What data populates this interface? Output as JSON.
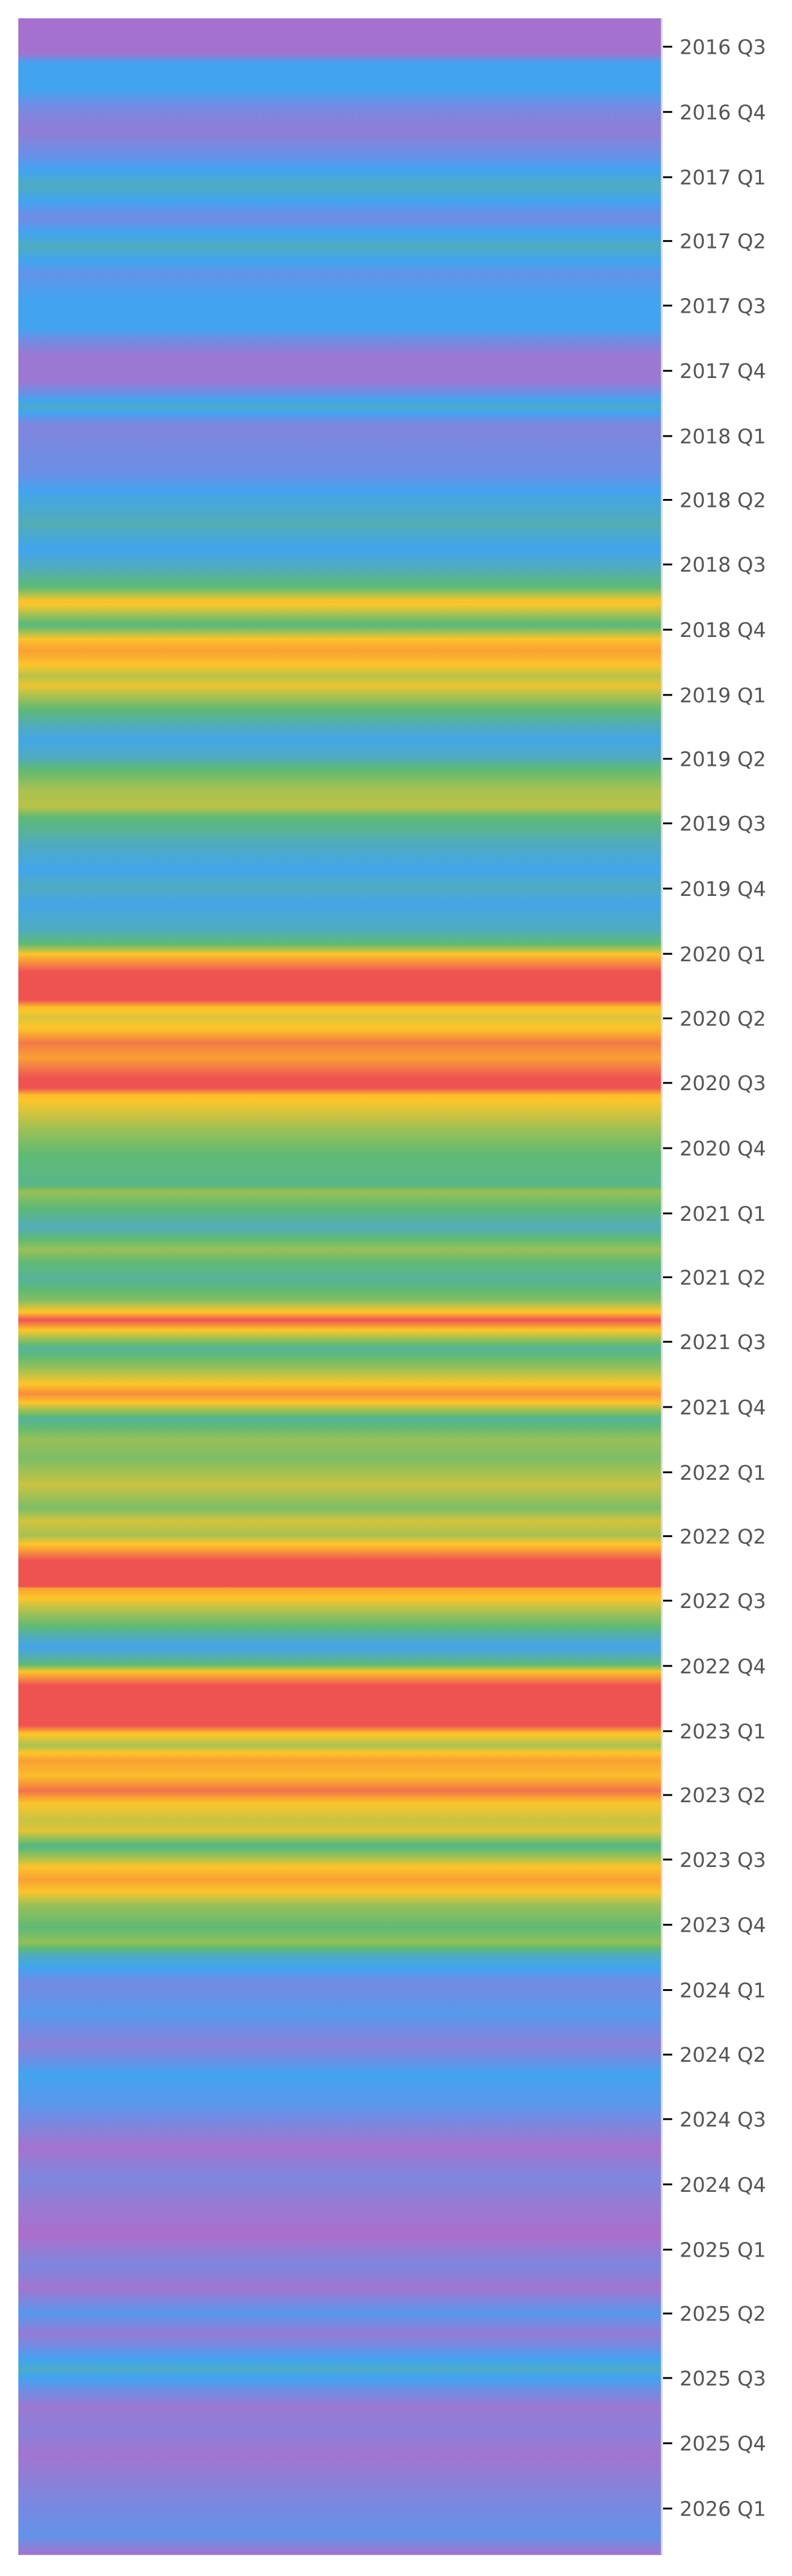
{
  "chart_data": {
    "type": "heatmap",
    "title": "",
    "xlabel": "",
    "ylabel": "",
    "orientation": "vertical-time-stripes",
    "y_axis_side": "right",
    "ylim": [
      "2016-05-22",
      "2026-03-07"
    ],
    "value_range": [
      0,
      1
    ],
    "grid": false,
    "colormap": [
      {
        "v": 0.0,
        "color": "#ab6fcb"
      },
      {
        "v": 0.1,
        "color": "#8a80d9"
      },
      {
        "v": 0.2,
        "color": "#6a8fe6"
      },
      {
        "v": 0.3,
        "color": "#42a4f0"
      },
      {
        "v": 0.4,
        "color": "#4fabc0"
      },
      {
        "v": 0.5,
        "color": "#5fba74"
      },
      {
        "v": 0.6,
        "color": "#a8c150"
      },
      {
        "v": 0.7,
        "color": "#fcc52b"
      },
      {
        "v": 0.8,
        "color": "#f9a033"
      },
      {
        "v": 0.9,
        "color": "#f37948"
      },
      {
        "v": 1.0,
        "color": "#ef5350"
      }
    ],
    "ticks": [
      {
        "label": "2016 Q3",
        "date": "2016-07-01"
      },
      {
        "label": "2016 Q4",
        "date": "2016-10-01"
      },
      {
        "label": "2017 Q1",
        "date": "2017-01-01"
      },
      {
        "label": "2017 Q2",
        "date": "2017-04-01"
      },
      {
        "label": "2017 Q3",
        "date": "2017-07-01"
      },
      {
        "label": "2017 Q4",
        "date": "2017-10-01"
      },
      {
        "label": "2018 Q1",
        "date": "2018-01-01"
      },
      {
        "label": "2018 Q2",
        "date": "2018-04-01"
      },
      {
        "label": "2018 Q3",
        "date": "2018-07-01"
      },
      {
        "label": "2018 Q4",
        "date": "2018-10-01"
      },
      {
        "label": "2019 Q1",
        "date": "2019-01-01"
      },
      {
        "label": "2019 Q2",
        "date": "2019-04-01"
      },
      {
        "label": "2019 Q3",
        "date": "2019-07-01"
      },
      {
        "label": "2019 Q4",
        "date": "2019-10-01"
      },
      {
        "label": "2020 Q1",
        "date": "2020-01-01"
      },
      {
        "label": "2020 Q2",
        "date": "2020-04-01"
      },
      {
        "label": "2020 Q3",
        "date": "2020-07-01"
      },
      {
        "label": "2020 Q4",
        "date": "2020-10-01"
      },
      {
        "label": "2021 Q1",
        "date": "2021-01-01"
      },
      {
        "label": "2021 Q2",
        "date": "2021-04-01"
      },
      {
        "label": "2021 Q3",
        "date": "2021-07-01"
      },
      {
        "label": "2021 Q4",
        "date": "2021-10-01"
      },
      {
        "label": "2022 Q1",
        "date": "2022-01-01"
      },
      {
        "label": "2022 Q2",
        "date": "2022-04-01"
      },
      {
        "label": "2022 Q3",
        "date": "2022-07-01"
      },
      {
        "label": "2022 Q4",
        "date": "2022-10-01"
      },
      {
        "label": "2023 Q1",
        "date": "2023-01-01"
      },
      {
        "label": "2023 Q2",
        "date": "2023-04-01"
      },
      {
        "label": "2023 Q3",
        "date": "2023-07-01"
      },
      {
        "label": "2023 Q4",
        "date": "2023-10-01"
      },
      {
        "label": "2024 Q1",
        "date": "2024-01-01"
      },
      {
        "label": "2024 Q2",
        "date": "2024-04-01"
      },
      {
        "label": "2024 Q3",
        "date": "2024-07-01"
      },
      {
        "label": "2024 Q4",
        "date": "2024-10-01"
      },
      {
        "label": "2025 Q1",
        "date": "2025-01-01"
      },
      {
        "label": "2025 Q2",
        "date": "2025-04-01"
      },
      {
        "label": "2025 Q3",
        "date": "2025-07-01"
      },
      {
        "label": "2025 Q4",
        "date": "2025-10-01"
      },
      {
        "label": "2026 Q1",
        "date": "2026-01-01"
      }
    ],
    "points": [
      [
        "2016-05-22",
        0.02
      ],
      [
        "2016-07-09",
        0.02
      ],
      [
        "2016-07-24",
        0.3
      ],
      [
        "2016-08-31",
        0.3
      ],
      [
        "2016-09-28",
        0.15
      ],
      [
        "2016-10-28",
        0.08
      ],
      [
        "2016-12-05",
        0.22
      ],
      [
        "2017-01-13",
        0.4
      ],
      [
        "2017-02-27",
        0.18
      ],
      [
        "2017-04-08",
        0.4
      ],
      [
        "2017-05-16",
        0.22
      ],
      [
        "2017-06-24",
        0.3
      ],
      [
        "2017-08-01",
        0.3
      ],
      [
        "2017-09-08",
        0.05
      ],
      [
        "2017-10-16",
        0.05
      ],
      [
        "2017-11-20",
        0.38
      ],
      [
        "2017-12-17",
        0.13
      ],
      [
        "2018-02-22",
        0.2
      ],
      [
        "2018-03-26",
        0.32
      ],
      [
        "2018-05-05",
        0.42
      ],
      [
        "2018-06-10",
        0.3
      ],
      [
        "2018-07-15",
        0.44
      ],
      [
        "2018-08-02",
        0.5
      ],
      [
        "2018-08-23",
        0.72
      ],
      [
        "2018-09-06",
        0.62
      ],
      [
        "2018-09-24",
        0.48
      ],
      [
        "2018-10-16",
        0.72
      ],
      [
        "2018-10-30",
        0.8
      ],
      [
        "2018-11-16",
        0.72
      ],
      [
        "2018-12-05",
        0.62
      ],
      [
        "2018-12-19",
        0.68
      ],
      [
        "2019-01-21",
        0.5
      ],
      [
        "2019-02-15",
        0.4
      ],
      [
        "2019-03-05",
        0.32
      ],
      [
        "2019-03-30",
        0.4
      ],
      [
        "2019-04-16",
        0.5
      ],
      [
        "2019-05-15",
        0.6
      ],
      [
        "2019-06-08",
        0.62
      ],
      [
        "2019-06-22",
        0.5
      ],
      [
        "2019-07-24",
        0.42
      ],
      [
        "2019-09-04",
        0.31
      ],
      [
        "2019-09-29",
        0.4
      ],
      [
        "2019-10-22",
        0.32
      ],
      [
        "2019-11-27",
        0.4
      ],
      [
        "2019-12-18",
        0.5
      ],
      [
        "2020-01-01",
        0.7
      ],
      [
        "2020-01-26",
        1.0
      ],
      [
        "2020-03-06",
        1.0
      ],
      [
        "2020-03-16",
        0.72
      ],
      [
        "2020-03-31",
        0.66
      ],
      [
        "2020-04-17",
        0.72
      ],
      [
        "2020-05-05",
        0.9
      ],
      [
        "2020-05-26",
        0.8
      ],
      [
        "2020-06-24",
        1.0
      ],
      [
        "2020-07-08",
        1.0
      ],
      [
        "2020-07-18",
        0.72
      ],
      [
        "2020-08-09",
        0.66
      ],
      [
        "2020-09-06",
        0.58
      ],
      [
        "2020-10-10",
        0.5
      ],
      [
        "2020-11-21",
        0.47
      ],
      [
        "2020-12-01",
        0.58
      ],
      [
        "2020-12-23",
        0.5
      ],
      [
        "2021-01-20",
        0.41
      ],
      [
        "2021-02-21",
        0.58
      ],
      [
        "2021-03-11",
        0.5
      ],
      [
        "2021-04-04",
        0.45
      ],
      [
        "2021-05-03",
        0.55
      ],
      [
        "2021-05-21",
        0.72
      ],
      [
        "2021-05-31",
        1.0
      ],
      [
        "2021-06-13",
        0.72
      ],
      [
        "2021-07-10",
        0.45
      ],
      [
        "2021-08-07",
        0.58
      ],
      [
        "2021-09-01",
        0.72
      ],
      [
        "2021-09-12",
        0.85
      ],
      [
        "2021-09-23",
        0.72
      ],
      [
        "2021-10-18",
        0.45
      ],
      [
        "2021-11-16",
        0.58
      ],
      [
        "2021-12-11",
        0.54
      ],
      [
        "2022-01-19",
        0.64
      ],
      [
        "2022-02-20",
        0.54
      ],
      [
        "2022-03-10",
        0.65
      ],
      [
        "2022-03-31",
        0.6
      ],
      [
        "2022-04-14",
        0.72
      ],
      [
        "2022-05-05",
        1.0
      ],
      [
        "2022-06-11",
        1.0
      ],
      [
        "2022-06-13",
        0.8
      ],
      [
        "2022-06-24",
        0.72
      ],
      [
        "2022-07-16",
        0.6
      ],
      [
        "2022-08-06",
        0.5
      ],
      [
        "2022-09-04",
        0.32
      ],
      [
        "2022-09-29",
        0.5
      ],
      [
        "2022-10-10",
        0.72
      ],
      [
        "2022-10-28",
        1.0
      ],
      [
        "2022-12-24",
        1.0
      ],
      [
        "2023-01-03",
        0.72
      ],
      [
        "2023-01-21",
        0.6
      ],
      [
        "2023-02-11",
        0.8
      ],
      [
        "2023-03-05",
        0.72
      ],
      [
        "2023-03-26",
        0.92
      ],
      [
        "2023-04-12",
        0.7
      ],
      [
        "2023-05-07",
        0.64
      ],
      [
        "2023-05-22",
        0.67
      ],
      [
        "2023-06-12",
        0.47
      ],
      [
        "2023-07-11",
        0.7
      ],
      [
        "2023-07-29",
        0.8
      ],
      [
        "2023-08-12",
        0.72
      ],
      [
        "2023-09-03",
        0.58
      ],
      [
        "2023-10-05",
        0.5
      ],
      [
        "2023-10-26",
        0.57
      ],
      [
        "2023-11-13",
        0.4
      ],
      [
        "2023-12-01",
        0.3
      ],
      [
        "2023-12-23",
        0.17
      ],
      [
        "2024-02-04",
        0.25
      ],
      [
        "2024-03-20",
        0.1
      ],
      [
        "2024-04-29",
        0.3
      ],
      [
        "2024-06-14",
        0.23
      ],
      [
        "2024-08-11",
        0.02
      ],
      [
        "2024-09-23",
        0.14
      ],
      [
        "2024-11-05",
        0.05
      ],
      [
        "2024-12-12",
        0.0
      ],
      [
        "2025-01-24",
        0.14
      ],
      [
        "2025-02-24",
        0.03
      ],
      [
        "2025-04-01",
        0.25
      ],
      [
        "2025-04-30",
        0.07
      ],
      [
        "2025-06-18",
        0.38
      ],
      [
        "2025-08-09",
        0.05
      ],
      [
        "2025-09-15",
        0.1
      ],
      [
        "2025-10-18",
        0.03
      ],
      [
        "2025-12-23",
        0.15
      ],
      [
        "2026-02-09",
        0.22
      ],
      [
        "2026-03-07",
        0.02
      ]
    ]
  }
}
